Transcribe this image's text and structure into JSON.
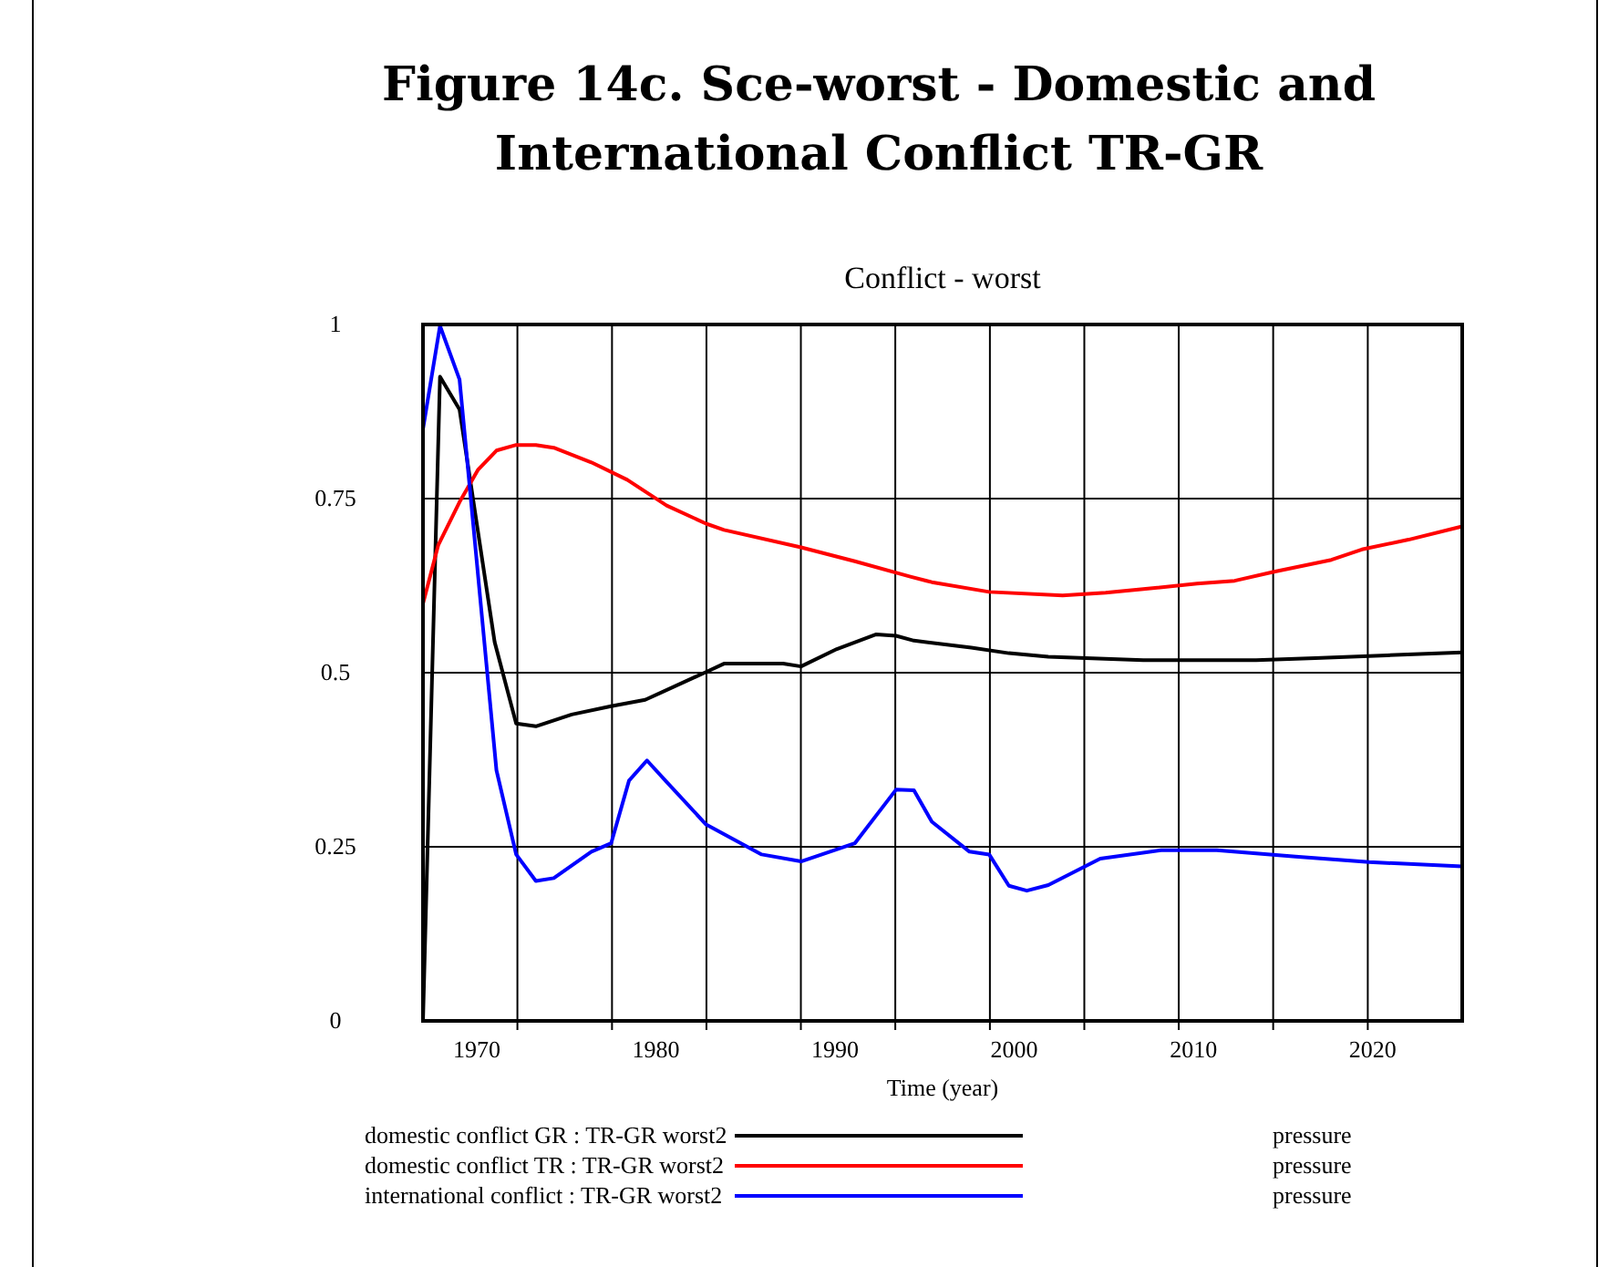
{
  "chart_data": {
    "type": "line",
    "title": "Figure 14c. Sce-worst - Domestic and International Conflict TR-GR",
    "subtitle": "Conflict - worst",
    "xlabel": "Time (year)",
    "xlim": [
      1967,
      2025
    ],
    "ylim": [
      0,
      1
    ],
    "xticks": [
      {
        "value": 1970,
        "label": "1970"
      },
      {
        "value": 1980,
        "label": "1980"
      },
      {
        "value": 1990,
        "label": "1990"
      },
      {
        "value": 2000,
        "label": "2000"
      },
      {
        "value": 2010,
        "label": "2010"
      },
      {
        "value": 2020,
        "label": "2020"
      },
      {
        "value": 1972.27,
        "label": null
      },
      {
        "value": 1977.55,
        "label": null
      },
      {
        "value": 1982.82,
        "label": null
      },
      {
        "value": 1988.09,
        "label": null
      },
      {
        "value": 1993.36,
        "label": null
      },
      {
        "value": 1998.64,
        "label": null
      },
      {
        "value": 2003.91,
        "label": null
      },
      {
        "value": 2009.18,
        "label": null
      },
      {
        "value": 2014.45,
        "label": null
      },
      {
        "value": 2019.73,
        "label": null
      }
    ],
    "yticks": [
      0,
      0.25,
      0.5,
      0.75,
      1
    ],
    "grid": true,
    "legend": "bottom",
    "line_style": "solid",
    "annotations": [
      "pressure",
      "pressure",
      "pressure"
    ],
    "series": [
      {
        "name": "domestic conflict GR : TR-GR worst2",
        "color": "#000000",
        "x": [
          1967,
          1967.95,
          1969.04,
          1971.0,
          1972.2,
          1973.3,
          1975.3,
          1977.5,
          1979.4,
          1982.8,
          1983.8,
          1987.1,
          1988.1,
          1990.1,
          1992.3,
          1993.4,
          1994.4,
          1997.6,
          1999.7,
          2001.9,
          2004.0,
          2007.2,
          2011.3,
          2013.5,
          2016.8,
          2020.8,
          2025.0
        ],
        "values": [
          0,
          0.925,
          0.878,
          0.544,
          0.427,
          0.423,
          0.44,
          0.452,
          0.461,
          0.501,
          0.513,
          0.513,
          0.509,
          0.534,
          0.555,
          0.553,
          0.546,
          0.536,
          0.528,
          0.523,
          0.521,
          0.518,
          0.518,
          0.518,
          0.521,
          0.525,
          0.529
        ]
      },
      {
        "name": "domestic conflict TR : TR-GR worst2",
        "color": "#ff0000",
        "x": [
          1967,
          1967.85,
          1969.04,
          1970.06,
          1971.1,
          1972.2,
          1973.3,
          1974.3,
          1976.4,
          1978.4,
          1980.6,
          1982.8,
          1983.8,
          1988.1,
          1991.1,
          1994.2,
          1995.4,
          1998.6,
          2002.7,
          2005.1,
          2007.2,
          2010.2,
          2012.3,
          2014.5,
          2017.7,
          2019.4,
          2022.0,
          2025.0
        ],
        "values": [
          0.599,
          0.683,
          0.745,
          0.791,
          0.819,
          0.827,
          0.827,
          0.823,
          0.802,
          0.777,
          0.74,
          0.714,
          0.705,
          0.68,
          0.66,
          0.638,
          0.63,
          0.616,
          0.611,
          0.615,
          0.62,
          0.628,
          0.632,
          0.645,
          0.662,
          0.677,
          0.691,
          0.71
        ]
      },
      {
        "name": "international conflict : TR-GR worst2",
        "color": "#0000ff",
        "x": [
          1967,
          1967.95,
          1969.04,
          1969.9,
          1971.1,
          1972.2,
          1973.3,
          1974.3,
          1976.4,
          1977.5,
          1978.5,
          1979.5,
          1980.6,
          1982.8,
          1985.9,
          1988.1,
          1991.1,
          1993.4,
          1994.4,
          1995.4,
          1997.5,
          1998.6,
          1999.7,
          2000.7,
          2001.9,
          2004.8,
          2008.2,
          2011.3,
          2015.7,
          2019.8,
          2025.0
        ],
        "values": [
          0.85,
          0.998,
          0.921,
          0.687,
          0.36,
          0.239,
          0.201,
          0.205,
          0.243,
          0.255,
          0.345,
          0.374,
          0.343,
          0.282,
          0.239,
          0.229,
          0.255,
          0.332,
          0.331,
          0.286,
          0.243,
          0.239,
          0.194,
          0.187,
          0.195,
          0.233,
          0.245,
          0.245,
          0.236,
          0.228,
          0.222
        ]
      }
    ]
  }
}
